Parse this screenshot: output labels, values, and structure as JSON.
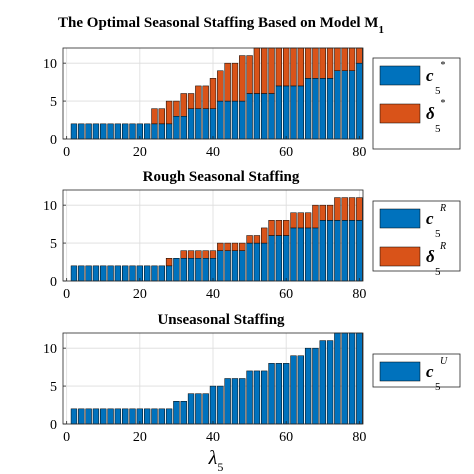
{
  "chart_data": [
    {
      "type": "bar",
      "stacked": true,
      "title": "The Optimal Seasonal Staffing Based on Model M",
      "title_subscript": "1",
      "x": [
        2,
        4,
        6,
        8,
        10,
        12,
        14,
        16,
        18,
        20,
        22,
        24,
        26,
        28,
        30,
        32,
        34,
        36,
        38,
        40,
        42,
        44,
        46,
        48,
        50,
        52,
        54,
        56,
        58,
        60,
        62,
        64,
        66,
        68,
        70,
        72,
        74,
        76,
        78,
        80
      ],
      "xlim": [
        -1,
        81
      ],
      "ylim": [
        0,
        12
      ],
      "xticks": [
        0,
        20,
        40,
        60,
        80
      ],
      "yticks": [
        0,
        5,
        10
      ],
      "grid": true,
      "legend_position": "right",
      "series": [
        {
          "name": "c",
          "sup": "*",
          "sub": "5",
          "color": "#0072BD",
          "values": [
            2,
            2,
            2,
            2,
            2,
            2,
            2,
            2,
            2,
            2,
            2,
            2,
            2,
            2,
            3,
            3,
            4,
            4,
            4,
            4,
            5,
            5,
            5,
            5,
            6,
            6,
            6,
            6,
            7,
            7,
            7,
            7,
            8,
            8,
            8,
            8,
            9,
            9,
            9,
            10
          ]
        },
        {
          "name": "δ",
          "sup": "*",
          "sub": "5",
          "color": "#D95319",
          "values": [
            0,
            0,
            0,
            0,
            0,
            0,
            0,
            0,
            0,
            0,
            0,
            2,
            2,
            3,
            2,
            3,
            2,
            3,
            3,
            4,
            4,
            5,
            5,
            6,
            5,
            6,
            6,
            6,
            5,
            5,
            5,
            5,
            4,
            4,
            4,
            4,
            3,
            3,
            3,
            2
          ]
        }
      ]
    },
    {
      "type": "bar",
      "stacked": true,
      "title": "Rough Seasonal Staffing",
      "x": [
        2,
        4,
        6,
        8,
        10,
        12,
        14,
        16,
        18,
        20,
        22,
        24,
        26,
        28,
        30,
        32,
        34,
        36,
        38,
        40,
        42,
        44,
        46,
        48,
        50,
        52,
        54,
        56,
        58,
        60,
        62,
        64,
        66,
        68,
        70,
        72,
        74,
        76,
        78,
        80
      ],
      "xlim": [
        -1,
        81
      ],
      "ylim": [
        0,
        12
      ],
      "xticks": [
        0,
        20,
        40,
        60,
        80
      ],
      "yticks": [
        0,
        5,
        10
      ],
      "grid": true,
      "legend_position": "right",
      "series": [
        {
          "name": "c",
          "sup": "R",
          "sub": "5",
          "color": "#0072BD",
          "values": [
            2,
            2,
            2,
            2,
            2,
            2,
            2,
            2,
            2,
            2,
            2,
            2,
            2,
            2,
            3,
            3,
            3,
            3,
            3,
            3,
            4,
            4,
            4,
            4,
            5,
            5,
            5,
            6,
            6,
            6,
            7,
            7,
            7,
            7,
            8,
            8,
            8,
            8,
            8,
            8
          ]
        },
        {
          "name": "δ",
          "sup": "R",
          "sub": "5",
          "color": "#D95319",
          "values": [
            0,
            0,
            0,
            0,
            0,
            0,
            0,
            0,
            0,
            0,
            0,
            0,
            0,
            1,
            0,
            1,
            1,
            1,
            1,
            1,
            1,
            1,
            1,
            1,
            1,
            1,
            2,
            2,
            2,
            2,
            2,
            2,
            2,
            3,
            2,
            2,
            3,
            3,
            3,
            3
          ]
        }
      ]
    },
    {
      "type": "bar",
      "title": "Unseasonal Staffing",
      "x": [
        2,
        4,
        6,
        8,
        10,
        12,
        14,
        16,
        18,
        20,
        22,
        24,
        26,
        28,
        30,
        32,
        34,
        36,
        38,
        40,
        42,
        44,
        46,
        48,
        50,
        52,
        54,
        56,
        58,
        60,
        62,
        64,
        66,
        68,
        70,
        72,
        74,
        76,
        78,
        80
      ],
      "xlim": [
        -1,
        81
      ],
      "ylim": [
        0,
        12
      ],
      "xticks": [
        0,
        20,
        40,
        60,
        80
      ],
      "yticks": [
        0,
        5,
        10
      ],
      "grid": true,
      "legend_position": "right",
      "xlabel": "λ",
      "xlabel_subscript": "5",
      "series": [
        {
          "name": "c",
          "sup": "U",
          "sub": "5",
          "color": "#0072BD",
          "values": [
            2,
            2,
            2,
            2,
            2,
            2,
            2,
            2,
            2,
            2,
            2,
            2,
            2,
            2,
            3,
            3,
            4,
            4,
            4,
            5,
            5,
            6,
            6,
            6,
            7,
            7,
            7,
            8,
            8,
            8,
            9,
            9,
            10,
            10,
            11,
            11,
            12,
            12,
            12,
            12
          ]
        }
      ]
    }
  ]
}
